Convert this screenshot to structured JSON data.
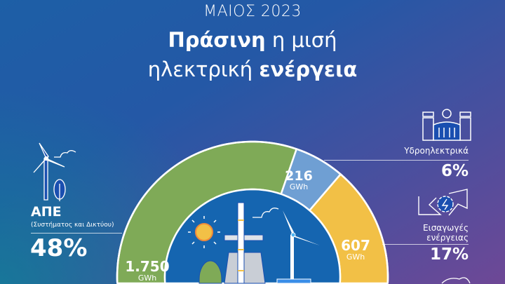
{
  "header": {
    "month_year": "ΜΑΙΟΣ 2023",
    "line1_bold": "Πράσινη",
    "line1_rest": " η μισή",
    "line2_rest": "ηλεκτρική ",
    "line2_bold": "ενέργεια"
  },
  "renewables": {
    "title": "ΑΠΕ",
    "subtitle": "(Συστήματος και Δικτύου)",
    "percent": "48%",
    "value": "1.750",
    "unit": "GWh",
    "icon": "wind-turbine-tree-icon"
  },
  "hydro": {
    "title": "Υδροηλεκτρικά",
    "percent": "6%",
    "value": "216",
    "unit": "GWh",
    "icon": "hydro-dam-icon"
  },
  "imports": {
    "title_line1": "Εισαγωγές",
    "title_line2": "ενέργειας",
    "percent": "17%",
    "value": "607",
    "unit": "GWh",
    "icon": "energy-import-arrows-icon"
  },
  "donut": {
    "shares_percent": [
      48,
      6,
      17
    ],
    "colors": [
      "#7faa57",
      "#6f9fd3",
      "#f2c046"
    ]
  },
  "center_illustration": "power-plant-sun-wind-icon"
}
